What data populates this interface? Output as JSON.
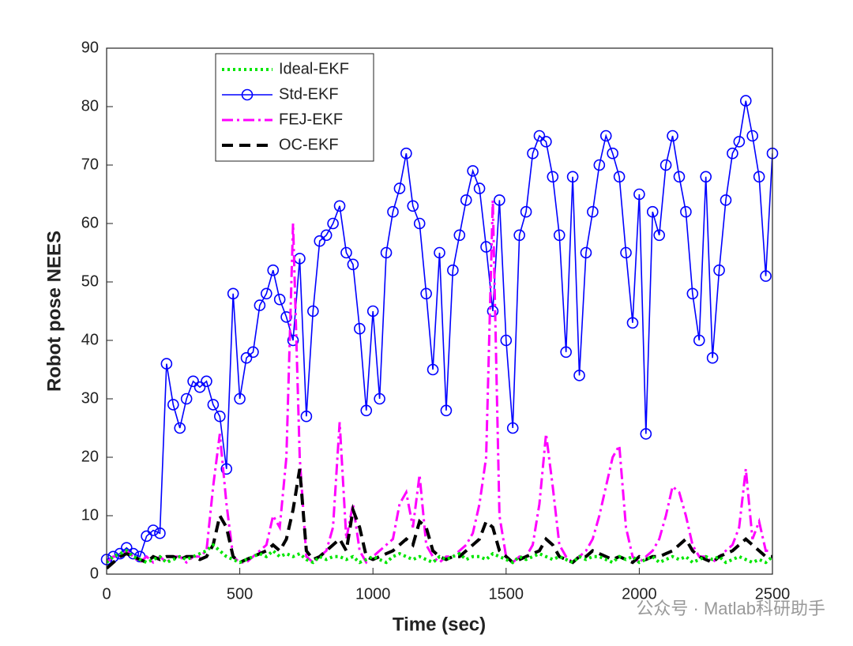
{
  "chart_data": {
    "type": "line",
    "xlabel": "Time (sec)",
    "ylabel": "Robot pose NEES",
    "watermark": "公众号 · Matlab科研助手",
    "legend": "upper left",
    "xlim": [
      0,
      2500
    ],
    "ylim": [
      0,
      90
    ],
    "xticks": [
      0,
      500,
      1000,
      1500,
      2000,
      2500
    ],
    "yticks": [
      0,
      10,
      20,
      30,
      40,
      50,
      60,
      70,
      80,
      90
    ],
    "x": [
      0,
      25,
      50,
      75,
      100,
      125,
      150,
      175,
      200,
      225,
      250,
      275,
      300,
      325,
      350,
      375,
      400,
      425,
      450,
      475,
      500,
      525,
      550,
      575,
      600,
      625,
      650,
      675,
      700,
      725,
      750,
      775,
      800,
      825,
      850,
      875,
      900,
      925,
      950,
      975,
      1000,
      1025,
      1050,
      1075,
      1100,
      1125,
      1150,
      1175,
      1200,
      1225,
      1250,
      1275,
      1300,
      1325,
      1350,
      1375,
      1400,
      1425,
      1450,
      1475,
      1500,
      1525,
      1550,
      1575,
      1600,
      1625,
      1650,
      1675,
      1700,
      1725,
      1750,
      1775,
      1800,
      1825,
      1850,
      1875,
      1900,
      1925,
      1950,
      1975,
      2000,
      2025,
      2050,
      2075,
      2100,
      2125,
      2150,
      2175,
      2200,
      2225,
      2250,
      2275,
      2300,
      2325,
      2350,
      2375,
      2400,
      2425,
      2450,
      2475,
      2500
    ],
    "series": [
      {
        "name": "Ideal-EKF",
        "color": "#00e600",
        "line_style": "dotted",
        "values": [
          2,
          3,
          3.5,
          4,
          3,
          2.5,
          2,
          2.5,
          3,
          2,
          2.5,
          3,
          2.5,
          3,
          3.5,
          4,
          5,
          4,
          3,
          2.5,
          2,
          2.5,
          3,
          3.5,
          3,
          4,
          3,
          3.5,
          3,
          3.5,
          2.5,
          2,
          3,
          2.5,
          3,
          3,
          2.5,
          3,
          2,
          2.5,
          3,
          2.5,
          2,
          3,
          3.5,
          3,
          2.5,
          3,
          2.5,
          2,
          3,
          2.5,
          3,
          3.5,
          2.5,
          3,
          3,
          2.5,
          3.5,
          3,
          2.5,
          2,
          3,
          2.5,
          3,
          3.5,
          3,
          2.5,
          3,
          2.5,
          2,
          3,
          2.5,
          3,
          3,
          2.5,
          2,
          3,
          2.5,
          3,
          2,
          2.5,
          3,
          2,
          2.5,
          3,
          2.5,
          3,
          2,
          2.5,
          3,
          2.5,
          3,
          2,
          2.5,
          3,
          2.5,
          2,
          2.5,
          2,
          3
        ]
      },
      {
        "name": "Std-EKF",
        "color": "#0000ff",
        "line_style": "solid",
        "marker": "o",
        "values": [
          2.5,
          3,
          3.5,
          4.5,
          3.5,
          3,
          6.5,
          7.5,
          7,
          36,
          29,
          25,
          30,
          33,
          32,
          33,
          29,
          27,
          18,
          48,
          30,
          37,
          38,
          46,
          48,
          52,
          47,
          44,
          40,
          54,
          27,
          45,
          57,
          58,
          60,
          63,
          55,
          53,
          42,
          28,
          45,
          30,
          55,
          62,
          66,
          72,
          63,
          60,
          48,
          35,
          55,
          28,
          52,
          58,
          64,
          69,
          66,
          56,
          45,
          64,
          40,
          25,
          58,
          62,
          72,
          75,
          74,
          68,
          58,
          38,
          68,
          34,
          55,
          62,
          70,
          75,
          72,
          68,
          55,
          43,
          65,
          24,
          62,
          58,
          70,
          75,
          68,
          62,
          48,
          40,
          68,
          37,
          52,
          64,
          72,
          74,
          81,
          75,
          68,
          51,
          72
        ]
      },
      {
        "name": "FEJ-EKF",
        "color": "#ff00ff",
        "line_style": "dashdot",
        "values": [
          2,
          3,
          3,
          4,
          3,
          2,
          3,
          2,
          3,
          2,
          3,
          3,
          2,
          3,
          3,
          4,
          15,
          24,
          12,
          3,
          2,
          2,
          3,
          4,
          5,
          10,
          8,
          20,
          60,
          20,
          3,
          2,
          3,
          4,
          8,
          26,
          6,
          12,
          4,
          2,
          3,
          4,
          5,
          6,
          12,
          14,
          8,
          17,
          5,
          3,
          2,
          3,
          3,
          4,
          5,
          7,
          12,
          20,
          64,
          10,
          3,
          2,
          3,
          3,
          5,
          12,
          24,
          15,
          5,
          3,
          2,
          3,
          4,
          6,
          10,
          15,
          20,
          22,
          8,
          3,
          2,
          3,
          4,
          6,
          10,
          15,
          14,
          10,
          5,
          3,
          3,
          2,
          3,
          4,
          5,
          8,
          18,
          6,
          9,
          4,
          4
        ]
      },
      {
        "name": "OC-EKF",
        "color": "#000000",
        "line_style": "dashed",
        "values": [
          1,
          2,
          3,
          3.5,
          3,
          2.5,
          2,
          3,
          2.5,
          3,
          3,
          2.5,
          3,
          3,
          2.5,
          3,
          5,
          10,
          8,
          3,
          2,
          2.5,
          3,
          3.5,
          4,
          5,
          4,
          6,
          11,
          18,
          4,
          2.5,
          3,
          4,
          5,
          6,
          4,
          11,
          8,
          3,
          2.5,
          3,
          3.5,
          4,
          5,
          6,
          5,
          9,
          8,
          4,
          3,
          2.5,
          3,
          3,
          4,
          5,
          6,
          9,
          8,
          4,
          3,
          2,
          2.5,
          3,
          3.5,
          4,
          6,
          5,
          3,
          2.5,
          2,
          3,
          3,
          4,
          3.5,
          3,
          2.5,
          3,
          2.5,
          2,
          3,
          2.5,
          3,
          3,
          3.5,
          4,
          5,
          6,
          4,
          3,
          2.5,
          2,
          3,
          3.5,
          4,
          5,
          6,
          5,
          4,
          3,
          3
        ]
      }
    ]
  }
}
